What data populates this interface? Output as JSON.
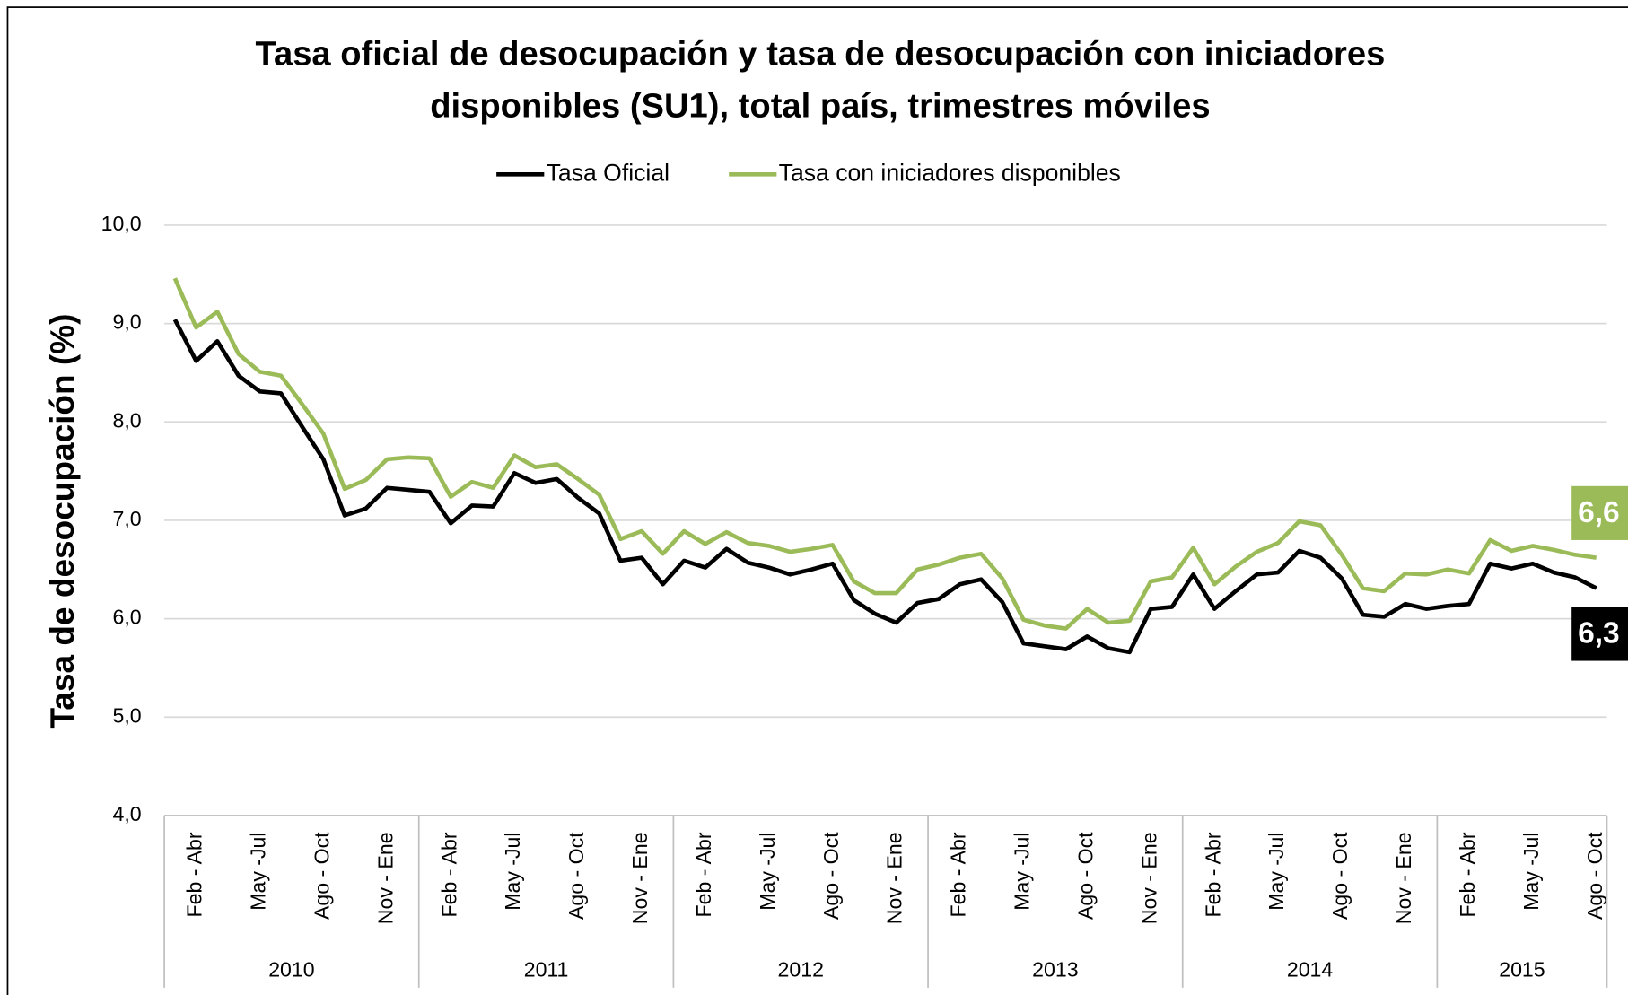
{
  "chart_data": {
    "type": "line",
    "title": [
      "Tasa oficial de desocupación y tasa de desocupación con iniciadores",
      "disponibles  (SU1), total país, trimestres móviles"
    ],
    "y_label": "Tasa de desocupación (%)",
    "categories": [
      null,
      "Feb - Abr",
      null,
      null,
      "May -Jul",
      null,
      null,
      "Ago - Oct",
      null,
      null,
      "Nov - Ene",
      null,
      null,
      "Feb - Abr",
      null,
      null,
      "May -Jul",
      null,
      null,
      "Ago - Oct",
      null,
      null,
      "Nov - Ene",
      null,
      null,
      "Feb - Abr",
      null,
      null,
      "May -Jul",
      null,
      null,
      "Ago - Oct",
      null,
      null,
      "Nov - Ene",
      null,
      null,
      "Feb - Abr",
      null,
      null,
      "May -Jul",
      null,
      null,
      "Ago - Oct",
      null,
      null,
      "Nov - Ene",
      null,
      null,
      "Feb - Abr",
      null,
      null,
      "May -Jul",
      null,
      null,
      "Ago - Oct",
      null,
      null,
      "Nov - Ene",
      null,
      null,
      "Feb - Abr",
      null,
      null,
      "May -Jul",
      null,
      null,
      "Ago - Oct"
    ],
    "groups": [
      {
        "label": "2010",
        "count": 12
      },
      {
        "label": "2011",
        "count": 12
      },
      {
        "label": "2012",
        "count": 12
      },
      {
        "label": "2013",
        "count": 12
      },
      {
        "label": "2014",
        "count": 12
      },
      {
        "label": "2015",
        "count": 8
      }
    ],
    "series": [
      {
        "name": "Tasa Oficial",
        "color": "#000000",
        "end_label": "6,3",
        "values": [
          9.04,
          8.62,
          8.82,
          8.47,
          8.31,
          8.29,
          7.95,
          7.62,
          7.05,
          7.12,
          7.33,
          7.31,
          7.29,
          6.97,
          7.15,
          7.14,
          7.48,
          7.38,
          7.42,
          7.23,
          7.07,
          6.59,
          6.62,
          6.35,
          6.59,
          6.52,
          6.71,
          6.57,
          6.52,
          6.45,
          6.5,
          6.56,
          6.19,
          6.05,
          5.96,
          6.16,
          6.2,
          6.35,
          6.4,
          6.17,
          5.75,
          5.72,
          5.69,
          5.82,
          5.7,
          5.66,
          6.1,
          6.12,
          6.45,
          6.1,
          6.28,
          6.45,
          6.47,
          6.69,
          6.62,
          6.41,
          6.04,
          6.02,
          6.15,
          6.1,
          6.13,
          6.15,
          6.56,
          6.51,
          6.56,
          6.47,
          6.42,
          6.31
        ]
      },
      {
        "name": "Tasa con iniciadores disponibles",
        "color": "#9bbb59",
        "end_label": "6,6",
        "values": [
          9.46,
          8.96,
          9.12,
          8.69,
          8.51,
          8.47,
          8.18,
          7.88,
          7.32,
          7.41,
          7.62,
          7.64,
          7.63,
          7.24,
          7.39,
          7.33,
          7.66,
          7.54,
          7.57,
          7.42,
          7.26,
          6.81,
          6.89,
          6.66,
          6.89,
          6.76,
          6.88,
          6.77,
          6.74,
          6.68,
          6.71,
          6.75,
          6.38,
          6.26,
          6.26,
          6.5,
          6.55,
          6.62,
          6.66,
          6.41,
          5.99,
          5.93,
          5.9,
          6.1,
          5.96,
          5.98,
          6.38,
          6.42,
          6.72,
          6.35,
          6.53,
          6.68,
          6.77,
          6.99,
          6.95,
          6.65,
          6.31,
          6.28,
          6.46,
          6.45,
          6.5,
          6.46,
          6.8,
          6.69,
          6.74,
          6.7,
          6.65,
          6.62
        ]
      }
    ],
    "ylim": [
      4,
      10
    ],
    "yticks": [
      {
        "value": 4,
        "label": "4,0"
      },
      {
        "value": 5,
        "label": "5,0"
      },
      {
        "value": 6,
        "label": "6,0"
      },
      {
        "value": 7,
        "label": "7,0"
      },
      {
        "value": 8,
        "label": "8,0"
      },
      {
        "value": 9,
        "label": "9,0"
      },
      {
        "value": 10,
        "label": "10,0"
      }
    ],
    "grid": true,
    "legend": "top"
  }
}
